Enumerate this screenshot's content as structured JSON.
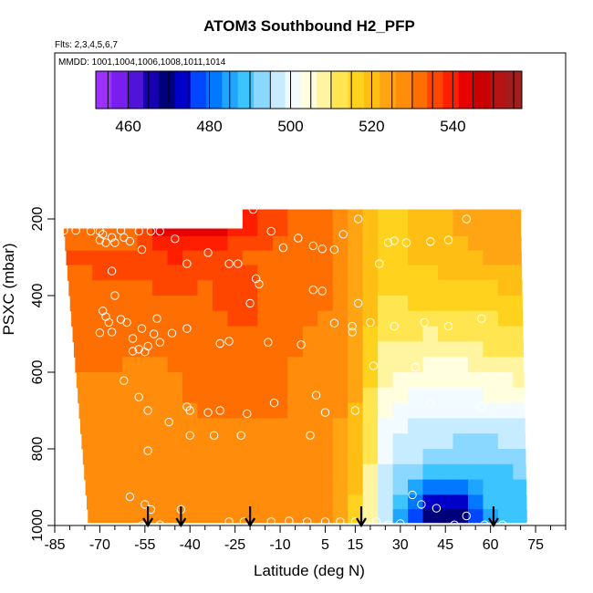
{
  "chart_data": {
    "type": "heatmap",
    "title": "ATOM3 Southbound H2_PFP",
    "subtitle_flights": "Flts: 2,3,4,5,6,7",
    "subtitle_dates": "MMDD: 1001,1004,1006,1008,1011,1014",
    "xlabel": "Latitude (deg N)",
    "ylabel": "PSXC (mbar)",
    "xlim": [
      -85,
      85
    ],
    "ylim": [
      1000,
      0
    ],
    "x_ticks": [
      -85,
      -70,
      -55,
      -40,
      -25,
      -10,
      5,
      15,
      30,
      45,
      60,
      75
    ],
    "y_ticks": [
      200,
      400,
      600,
      800,
      1000
    ],
    "colorbar": {
      "min": 452,
      "max": 557,
      "ticks": [
        460,
        480,
        500,
        520,
        540
      ],
      "colors": [
        "#9b30ff",
        "#7a1ef0",
        "#5014d8",
        "#1400b0",
        "#00007a",
        "#0000c8",
        "#0046ff",
        "#0078ff",
        "#1ea5ff",
        "#3cc4ff",
        "#8ad8ff",
        "#c8ecff",
        "#f2fbff",
        "#ffffe0",
        "#fff5a0",
        "#ffe650",
        "#ffd21e",
        "#ffbe14",
        "#ffa514",
        "#ff8c0a",
        "#ff6e00",
        "#ff4600",
        "#ff1e00",
        "#e60000",
        "#c80000",
        "#b41414",
        "#a01e1e"
      ]
    },
    "grid": {
      "lat": [
        -80,
        -75,
        -70,
        -65,
        -60,
        -55,
        -50,
        -45,
        -40,
        -35,
        -30,
        -25,
        -20,
        -15,
        -10,
        -5,
        0,
        5,
        10,
        15,
        20,
        25,
        30,
        35,
        40,
        45,
        50,
        55,
        60,
        65,
        70
      ],
      "p": [
        225,
        265,
        300,
        340,
        380,
        420,
        460,
        500,
        540,
        580,
        620,
        660,
        700,
        740,
        780,
        820,
        860,
        900,
        940,
        975
      ]
    },
    "nodes": {
      "lat": [
        -82,
        -60,
        -47,
        -35,
        -25,
        -10,
        5,
        10,
        17,
        20,
        22,
        25,
        30,
        40,
        50,
        60,
        72
      ],
      "p": [
        225,
        300,
        400,
        550,
        700,
        850,
        975
      ],
      "values": [
        [
          532,
          532,
          545,
          545,
          540,
          535,
          530,
          528,
          524,
          520,
          518,
          516,
          518,
          520,
          522,
          524,
          526
        ],
        [
          534,
          535,
          538,
          536,
          534,
          532,
          530,
          528,
          524,
          520,
          517,
          516,
          518,
          519,
          521,
          522,
          524
        ],
        [
          533,
          532,
          533,
          533,
          537,
          532,
          530,
          528,
          524,
          520,
          516,
          514,
          515,
          516,
          517,
          517,
          518
        ],
        [
          531,
          530,
          530,
          531,
          532,
          530,
          529,
          527,
          522,
          517,
          512,
          510,
          509,
          507,
          508,
          510,
          512
        ],
        [
          528,
          528,
          529,
          530,
          530,
          530,
          528,
          526,
          520,
          513,
          507,
          504,
          501,
          500,
          500,
          500,
          501
        ],
        [
          527,
          527,
          527,
          528,
          528,
          528,
          527,
          524,
          518,
          510,
          503,
          498,
          495,
          492,
          489,
          490,
          492
        ],
        [
          526,
          526,
          527,
          527,
          527,
          527,
          526,
          522,
          515,
          508,
          500,
          496,
          485,
          468,
          470,
          486,
          490
        ]
      ]
    },
    "valid_extent": {
      "left_lat_at_top": -82,
      "left_lat_at_bottom": -74,
      "right_lat_top": 70,
      "right_lat_bottom": 72,
      "top_p_north": 175,
      "top_p_south": 225,
      "north_south_split_lat": -20
    },
    "samples": [
      [
        -82,
        230
      ],
      [
        -78,
        230
      ],
      [
        -73,
        232
      ],
      [
        -70,
        255
      ],
      [
        -70,
        232
      ],
      [
        -69,
        240
      ],
      [
        -68,
        262
      ],
      [
        -66,
        248
      ],
      [
        -65,
        262
      ],
      [
        -63,
        230
      ],
      [
        -62,
        248
      ],
      [
        -60,
        258
      ],
      [
        -57,
        232
      ],
      [
        -56,
        280
      ],
      [
        -53,
        232
      ],
      [
        -50,
        232
      ],
      [
        -45,
        252
      ],
      [
        -41,
        317
      ],
      [
        -34,
        288
      ],
      [
        -27,
        317
      ],
      [
        -24,
        317
      ],
      [
        -19,
        175
      ],
      [
        -13,
        232
      ],
      [
        -9,
        275
      ],
      [
        -4,
        250
      ],
      [
        1,
        270
      ],
      [
        4,
        278
      ],
      [
        8,
        280
      ],
      [
        11,
        240
      ],
      [
        16,
        200
      ],
      [
        23,
        317
      ],
      [
        26,
        262
      ],
      [
        28,
        257
      ],
      [
        32,
        262
      ],
      [
        40,
        259
      ],
      [
        46,
        255
      ],
      [
        52,
        200
      ],
      [
        -66,
        336
      ],
      [
        -65,
        400
      ],
      [
        -18,
        356
      ],
      [
        -17,
        370
      ],
      [
        1,
        385
      ],
      [
        4,
        388
      ],
      [
        -69,
        440
      ],
      [
        -68,
        455
      ],
      [
        -70,
        497
      ],
      [
        -67,
        470
      ],
      [
        -66,
        495
      ],
      [
        -63,
        462
      ],
      [
        -61,
        470
      ],
      [
        -59,
        512
      ],
      [
        -56,
        486
      ],
      [
        -54,
        532
      ],
      [
        -52,
        500
      ],
      [
        -51,
        460
      ],
      [
        -46,
        498
      ],
      [
        -41,
        486
      ],
      [
        -20,
        420
      ],
      [
        -14,
        522
      ],
      [
        8,
        472
      ],
      [
        14,
        480
      ],
      [
        16,
        420
      ],
      [
        20,
        470
      ],
      [
        28,
        480
      ],
      [
        38,
        470
      ],
      [
        46,
        480
      ],
      [
        57,
        460
      ],
      [
        -59,
        545
      ],
      [
        -57,
        540
      ],
      [
        -55,
        547
      ],
      [
        -50,
        522
      ],
      [
        -30,
        525
      ],
      [
        -27,
        519
      ],
      [
        -3,
        528
      ],
      [
        14,
        495
      ],
      [
        21,
        583
      ],
      [
        35,
        587
      ],
      [
        -62,
        622
      ],
      [
        -57,
        665
      ],
      [
        -54,
        700
      ],
      [
        -47,
        730
      ],
      [
        -41,
        690
      ],
      [
        -40,
        700
      ],
      [
        -34,
        705
      ],
      [
        -30,
        700
      ],
      [
        -21,
        708
      ],
      [
        -12,
        680
      ],
      [
        2,
        660
      ],
      [
        5,
        705
      ],
      [
        15,
        700
      ],
      [
        40,
        680
      ],
      [
        57,
        690
      ],
      [
        72,
        675
      ],
      [
        -40,
        765
      ],
      [
        -32,
        765
      ],
      [
        -23,
        765
      ],
      [
        0,
        765
      ],
      [
        -54,
        805
      ],
      [
        -60,
        925
      ],
      [
        -55,
        945
      ],
      [
        -53,
        958
      ],
      [
        -43,
        958
      ],
      [
        -27,
        990
      ],
      [
        -22,
        990
      ],
      [
        -13,
        990
      ],
      [
        -7,
        988
      ],
      [
        -1,
        990
      ],
      [
        5,
        990
      ],
      [
        10,
        990
      ],
      [
        15,
        990
      ],
      [
        22,
        990
      ],
      [
        26,
        998
      ],
      [
        30,
        995
      ],
      [
        34,
        920
      ],
      [
        37,
        945
      ],
      [
        42,
        955
      ],
      [
        48,
        998
      ],
      [
        52,
        975
      ],
      [
        58,
        998
      ],
      [
        64,
        998
      ],
      [
        73,
        1000
      ],
      [
        -56,
        1000
      ],
      [
        -50,
        998
      ]
    ],
    "arrows_lat": [
      -54,
      -43,
      -20,
      17,
      61
    ]
  }
}
